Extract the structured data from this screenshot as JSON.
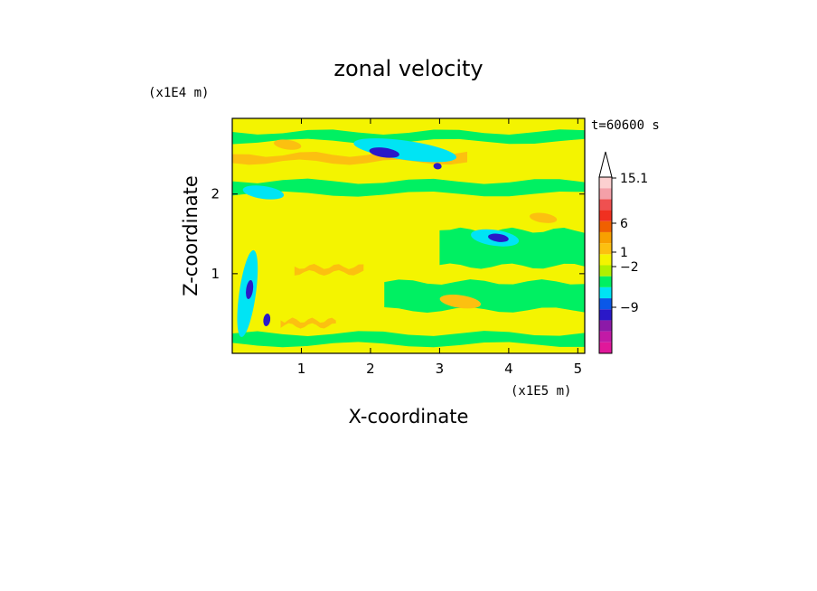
{
  "chart_data": {
    "type": "heatmap",
    "title": "zonal velocity",
    "xlabel": "X-coordinate",
    "ylabel": "Z-coordinate",
    "x_unit": "(x1E5 m)",
    "y_unit": "(x1E4 m)",
    "time_label": "t=60600 s",
    "xlim": [
      0,
      5.1
    ],
    "ylim": [
      0,
      2.95
    ],
    "x_ticks": [
      1,
      2,
      3,
      4,
      5
    ],
    "y_ticks": [
      1,
      2
    ],
    "colorbar": {
      "labels": [
        {
          "value": 15.1,
          "text": "15.1"
        },
        {
          "value": 6,
          "text": "6"
        },
        {
          "value": 1,
          "text": "1"
        },
        {
          "value": -2,
          "text": "−2"
        },
        {
          "value": -9,
          "text": "−9"
        }
      ],
      "colors": [
        "#e0189a",
        "#c21aa6",
        "#8c1aa8",
        "#2a18c8",
        "#0a58e8",
        "#00e4f4",
        "#00f062",
        "#b0f000",
        "#f4f400",
        "#fcc010",
        "#f8a000",
        "#f06000",
        "#f03020",
        "#ef5050",
        "#f4a0a8",
        "#fcd0d0"
      ],
      "extend_top": "#ffffff"
    },
    "field": {
      "background": "#f4f400",
      "bands": [
        {
          "color": "#00f062",
          "z": 2.72,
          "thickness": 0.12,
          "x0": 0,
          "x1": 5.1
        },
        {
          "color": "#00f062",
          "z": 2.08,
          "thickness": 0.16,
          "x0": 0,
          "x1": 5.1
        },
        {
          "color": "#00f062",
          "z": 1.32,
          "thickness": 0.45,
          "x0": 3.0,
          "x1": 5.1
        },
        {
          "color": "#00f062",
          "z": 0.72,
          "thickness": 0.35,
          "x0": 2.2,
          "x1": 5.1
        },
        {
          "color": "#00f062",
          "z": 0.18,
          "thickness": 0.14,
          "x0": 0,
          "x1": 5.1
        },
        {
          "color": "#fcc010",
          "z": 2.45,
          "thickness": 0.1,
          "x0": 0,
          "x1": 3.4
        },
        {
          "color": "#fcc010",
          "z": 1.05,
          "thickness": 0.08,
          "x0": 0.9,
          "x1": 1.9
        },
        {
          "color": "#fcc010",
          "z": 0.38,
          "thickness": 0.07,
          "x0": 0.7,
          "x1": 1.5
        }
      ],
      "blobs": [
        {
          "color": "#00e4f4",
          "x": 2.5,
          "z": 2.55,
          "rx": 0.75,
          "rz": 0.12
        },
        {
          "color": "#00e4f4",
          "x": 3.8,
          "z": 1.45,
          "rx": 0.35,
          "rz": 0.1
        },
        {
          "color": "#00e4f4",
          "x": 0.45,
          "z": 2.02,
          "rx": 0.3,
          "rz": 0.08
        },
        {
          "color": "#00e4f4",
          "x": 0.22,
          "z": 0.75,
          "rx": 0.12,
          "rz": 0.55
        },
        {
          "color": "#2a18c8",
          "x": 2.2,
          "z": 2.52,
          "rx": 0.22,
          "rz": 0.06
        },
        {
          "color": "#2a18c8",
          "x": 3.85,
          "z": 1.45,
          "rx": 0.15,
          "rz": 0.05
        },
        {
          "color": "#2a18c8",
          "x": 2.97,
          "z": 2.35,
          "rx": 0.06,
          "rz": 0.04
        },
        {
          "color": "#2a18c8",
          "x": 0.25,
          "z": 0.8,
          "rx": 0.05,
          "rz": 0.12
        },
        {
          "color": "#2a18c8",
          "x": 0.5,
          "z": 0.42,
          "rx": 0.05,
          "rz": 0.08
        },
        {
          "color": "#fcc010",
          "x": 0.8,
          "z": 2.62,
          "rx": 0.2,
          "rz": 0.06
        },
        {
          "color": "#fcc010",
          "x": 3.3,
          "z": 0.65,
          "rx": 0.3,
          "rz": 0.08
        },
        {
          "color": "#fcc010",
          "x": 4.5,
          "z": 1.7,
          "rx": 0.2,
          "rz": 0.06
        }
      ]
    }
  }
}
